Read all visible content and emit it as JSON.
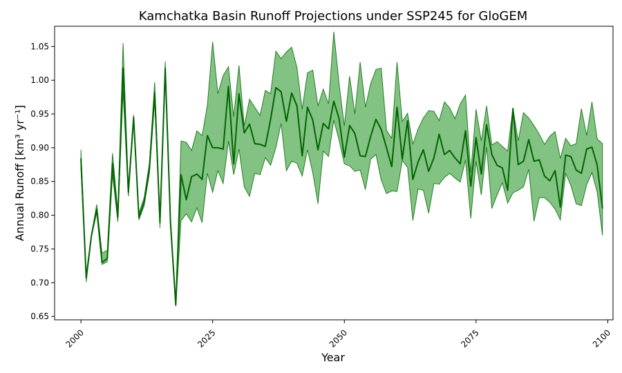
{
  "chart_data": {
    "type": "line",
    "title": "Kamchatka Basin Runoff Projections under SSP245 for GloGEM",
    "xlabel": "Year",
    "ylabel": "Annual Runoff [km³ yr⁻¹]",
    "xlim": [
      1995,
      2101
    ],
    "ylim": [
      0.645,
      1.08
    ],
    "xticks": [
      2000,
      2025,
      2050,
      2075,
      2100
    ],
    "yticks": [
      0.65,
      0.7,
      0.75,
      0.8,
      0.85,
      0.9,
      0.95,
      1.0,
      1.05
    ],
    "grid": false,
    "colors": {
      "line": "#006400",
      "band": "#2e9a2e"
    },
    "x": [
      2000,
      2001,
      2002,
      2003,
      2004,
      2005,
      2006,
      2007,
      2008,
      2009,
      2010,
      2011,
      2012,
      2013,
      2014,
      2015,
      2016,
      2017,
      2018,
      2019,
      2020,
      2021,
      2022,
      2023,
      2024,
      2025,
      2026,
      2027,
      2028,
      2029,
      2030,
      2031,
      2032,
      2033,
      2034,
      2035,
      2036,
      2037,
      2038,
      2039,
      2040,
      2041,
      2042,
      2043,
      2044,
      2045,
      2046,
      2047,
      2048,
      2049,
      2050,
      2051,
      2052,
      2053,
      2054,
      2055,
      2056,
      2057,
      2058,
      2059,
      2060,
      2061,
      2062,
      2063,
      2064,
      2065,
      2066,
      2067,
      2068,
      2069,
      2070,
      2071,
      2072,
      2073,
      2074,
      2075,
      2076,
      2077,
      2078,
      2079,
      2080,
      2081,
      2082,
      2083,
      2084,
      2085,
      2086,
      2087,
      2088,
      2089,
      2090,
      2091,
      2092,
      2093,
      2094,
      2095,
      2096,
      2097,
      2098,
      2099
    ],
    "series": [
      {
        "name": "",
        "values": [
          0.884,
          0.707,
          0.77,
          0.809,
          0.73,
          0.736,
          0.877,
          0.797,
          1.018,
          0.834,
          0.945,
          0.797,
          0.82,
          0.869,
          0.982,
          0.789,
          1.018,
          0.789,
          0.667,
          0.86,
          0.823,
          0.857,
          0.861,
          0.853,
          0.918,
          0.9,
          0.9,
          0.898,
          0.991,
          0.876,
          0.98,
          0.922,
          0.935,
          0.906,
          0.905,
          0.902,
          0.942,
          0.989,
          0.983,
          0.939,
          0.981,
          0.962,
          0.888,
          0.96,
          0.941,
          0.897,
          0.936,
          0.928,
          0.969,
          0.943,
          0.886,
          0.933,
          0.921,
          0.888,
          0.887,
          0.917,
          0.942,
          0.927,
          0.9,
          0.872,
          0.96,
          0.883,
          0.94,
          0.853,
          0.879,
          0.897,
          0.865,
          0.885,
          0.92,
          0.89,
          0.896,
          0.885,
          0.876,
          0.925,
          0.843,
          0.915,
          0.861,
          0.934,
          0.89,
          0.874,
          0.87,
          0.837,
          0.958,
          0.875,
          0.88,
          0.912,
          0.88,
          0.882,
          0.858,
          0.851,
          0.866,
          0.812,
          0.889,
          0.887,
          0.867,
          0.862,
          0.898,
          0.901,
          0.874,
          0.81
        ]
      }
    ],
    "band": {
      "upper": [
        0.897,
        0.712,
        0.772,
        0.816,
        0.744,
        0.748,
        0.892,
        0.805,
        1.055,
        0.84,
        0.949,
        0.803,
        0.826,
        0.878,
        0.997,
        0.795,
        1.028,
        0.797,
        0.67,
        0.91,
        0.908,
        0.896,
        0.925,
        0.918,
        0.963,
        1.057,
        0.98,
        1.007,
        1.02,
        0.946,
        1.022,
        0.932,
        0.972,
        0.96,
        0.948,
        0.985,
        0.98,
        1.043,
        1.032,
        1.042,
        1.049,
        1.019,
        0.957,
        1.011,
        1.015,
        0.962,
        0.987,
        0.965,
        1.072,
        0.995,
        0.932,
        1.006,
        0.95,
        1.027,
        0.96,
        0.995,
        1.016,
        1.018,
        0.926,
        0.914,
        1.027,
        0.939,
        0.951,
        0.905,
        0.928,
        0.944,
        0.955,
        0.954,
        0.94,
        0.968,
        0.959,
        0.943,
        0.965,
        0.978,
        0.863,
        0.957,
        0.91,
        0.962,
        0.904,
        0.909,
        0.902,
        0.895,
        0.959,
        0.91,
        0.952,
        0.944,
        0.933,
        0.92,
        0.905,
        0.917,
        0.924,
        0.884,
        0.914,
        0.903,
        0.906,
        0.958,
        0.918,
        0.968,
        0.913,
        0.906
      ],
      "lower": [
        0.87,
        0.701,
        0.768,
        0.804,
        0.727,
        0.731,
        0.86,
        0.79,
        0.984,
        0.828,
        0.938,
        0.793,
        0.814,
        0.862,
        0.97,
        0.781,
        1.01,
        0.781,
        0.665,
        0.792,
        0.802,
        0.79,
        0.811,
        0.789,
        0.862,
        0.834,
        0.866,
        0.847,
        0.91,
        0.86,
        0.898,
        0.842,
        0.828,
        0.862,
        0.86,
        0.885,
        0.874,
        0.9,
        0.936,
        0.866,
        0.88,
        0.877,
        0.858,
        0.897,
        0.863,
        0.817,
        0.895,
        0.887,
        0.941,
        0.911,
        0.876,
        0.873,
        0.865,
        0.867,
        0.838,
        0.883,
        0.89,
        0.852,
        0.832,
        0.836,
        0.835,
        0.881,
        0.871,
        0.792,
        0.839,
        0.837,
        0.803,
        0.847,
        0.846,
        0.856,
        0.862,
        0.855,
        0.849,
        0.882,
        0.795,
        0.88,
        0.83,
        0.901,
        0.81,
        0.83,
        0.848,
        0.818,
        0.833,
        0.837,
        0.842,
        0.868,
        0.791,
        0.826,
        0.826,
        0.819,
        0.809,
        0.793,
        0.862,
        0.844,
        0.817,
        0.814,
        0.845,
        0.863,
        0.834,
        0.77
      ]
    }
  }
}
